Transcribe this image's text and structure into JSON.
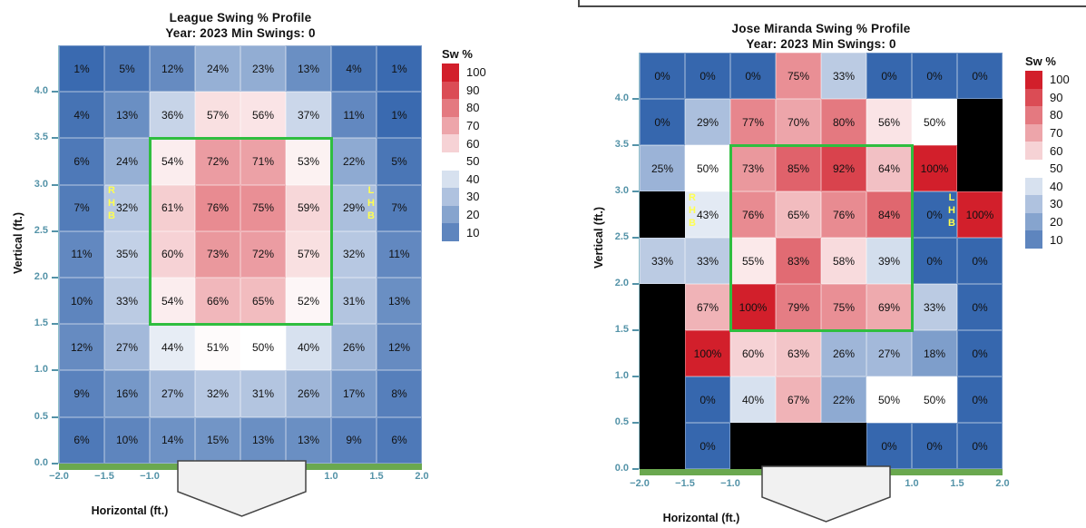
{
  "colors": {
    "cell_low_blue": "#3667ae",
    "cell_mid_white": "#ffffff",
    "cell_high_red": "#d21f2b",
    "cell_missing_black": "#000000",
    "strike_zone_green": "#2fbe3f",
    "ground_green": "#6aa84f",
    "axis_tick_teal": "#5493a8",
    "axis_line_teal": "#8fbfca",
    "handedness_yellow": "#ffff4f",
    "plate_fill": "#f1f1f1",
    "plate_border": "#444444"
  },
  "chart_data": [
    {
      "type": "heatmap",
      "title": "League Swing % Profile",
      "subtitle": "Year: 2023 Min Swings: 0",
      "xlabel": "Horizontal (ft.)",
      "ylabel": "Vertical (ft.)",
      "legend_title": "Sw %",
      "legend_ticks": [
        100,
        90,
        80,
        70,
        60,
        50,
        40,
        30,
        20,
        10
      ],
      "x_range_ft": [
        -2.0,
        2.0
      ],
      "y_range_ft": [
        0.0,
        4.5
      ],
      "x_tick_labels": [
        "−2.0",
        "−1.5",
        "−1.0",
        "1.0",
        "1.5",
        "2.0"
      ],
      "x_tick_cols": [
        0,
        1,
        2,
        6,
        7,
        8
      ],
      "y_tick_labels": [
        "4.0",
        "3.5",
        "3.0",
        "2.5",
        "2.0",
        "1.5",
        "1.0",
        "0.5",
        "0.0"
      ],
      "value_suffix": "%",
      "rows": [
        [
          1,
          5,
          12,
          24,
          23,
          13,
          4,
          1
        ],
        [
          4,
          13,
          36,
          57,
          56,
          37,
          11,
          1
        ],
        [
          6,
          24,
          54,
          72,
          71,
          53,
          22,
          5
        ],
        [
          7,
          32,
          61,
          76,
          75,
          59,
          29,
          7
        ],
        [
          11,
          35,
          60,
          73,
          72,
          57,
          32,
          11
        ],
        [
          10,
          33,
          54,
          66,
          65,
          52,
          31,
          13
        ],
        [
          12,
          27,
          44,
          51,
          50,
          40,
          26,
          12
        ],
        [
          9,
          16,
          27,
          32,
          31,
          26,
          17,
          8
        ],
        [
          6,
          10,
          14,
          15,
          13,
          13,
          9,
          6
        ]
      ],
      "strike_zone": {
        "col_start": 2,
        "col_span": 4,
        "row_start": 2,
        "row_span": 4,
        "zone_ft": {
          "x": [
            -1.0,
            1.0
          ],
          "y": [
            1.5,
            3.5
          ]
        }
      },
      "left_hand_label": "RHB",
      "right_hand_label": "LHB"
    },
    {
      "type": "heatmap",
      "title": "Jose Miranda Swing % Profile",
      "subtitle": "Year: 2023 Min Swings: 0",
      "xlabel": "Horizontal (ft.)",
      "ylabel": "Vertical (ft.)",
      "legend_title": "Sw %",
      "legend_ticks": [
        100,
        90,
        80,
        70,
        60,
        50,
        40,
        30,
        20,
        10
      ],
      "x_range_ft": [
        -2.0,
        2.0
      ],
      "y_range_ft": [
        0.0,
        4.5
      ],
      "x_tick_labels": [
        "−2.0",
        "−1.5",
        "−1.0",
        "1.0",
        "1.5",
        "2.0"
      ],
      "x_tick_cols": [
        0,
        1,
        2,
        6,
        7,
        8
      ],
      "y_tick_labels": [
        "4.0",
        "3.5",
        "3.0",
        "2.5",
        "2.0",
        "1.5",
        "1.0",
        "0.5",
        "0.0"
      ],
      "value_suffix": "%",
      "rows": [
        [
          0,
          0,
          0,
          75,
          33,
          0,
          0,
          0
        ],
        [
          0,
          29,
          77,
          70,
          80,
          56,
          50,
          null
        ],
        [
          25,
          50,
          73,
          85,
          92,
          64,
          100,
          null
        ],
        [
          null,
          43,
          76,
          65,
          76,
          84,
          0,
          100
        ],
        [
          33,
          33,
          55,
          83,
          58,
          39,
          0,
          0
        ],
        [
          null,
          67,
          100,
          79,
          75,
          69,
          33,
          0
        ],
        [
          null,
          100,
          60,
          63,
          26,
          27,
          18,
          0
        ],
        [
          null,
          0,
          40,
          67,
          22,
          50,
          50,
          0
        ],
        [
          null,
          0,
          null,
          null,
          null,
          0,
          0,
          0
        ]
      ],
      "strike_zone": {
        "col_start": 2,
        "col_span": 4,
        "row_start": 2,
        "row_span": 4,
        "zone_ft": {
          "x": [
            -1.0,
            1.0
          ],
          "y": [
            1.5,
            3.5
          ]
        }
      },
      "left_hand_label": "RHB",
      "right_hand_label": "LHB"
    }
  ]
}
